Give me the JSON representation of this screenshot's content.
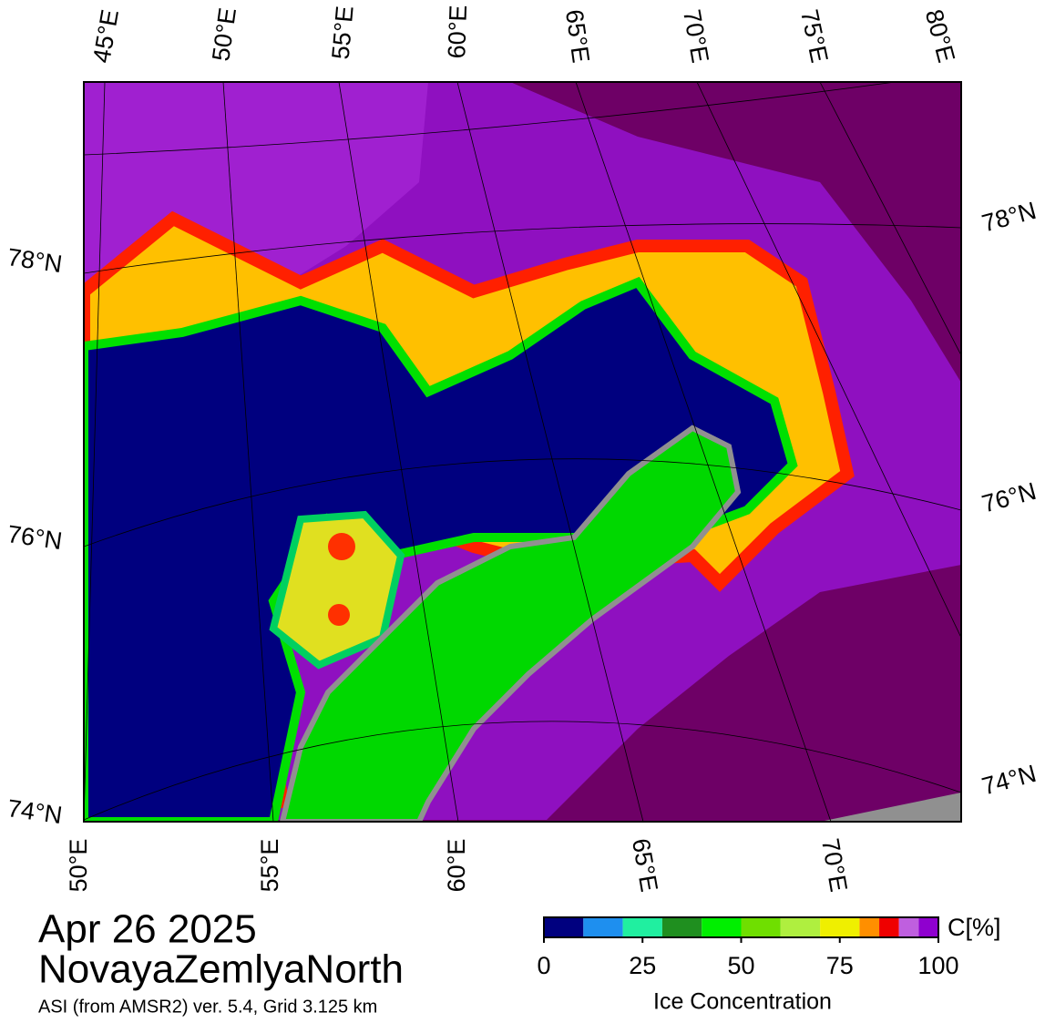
{
  "map": {
    "top_labels": [
      "45°E",
      "50°E",
      "55°E",
      "60°E",
      "65°E",
      "70°E",
      "75°E",
      "80°E"
    ],
    "bottom_labels": [
      "50°E",
      "55°E",
      "60°E",
      "65°E",
      "70°E"
    ],
    "left_labels": [
      "78°N",
      "76°N",
      "74°N"
    ],
    "right_labels": [
      "78°N",
      "76°N",
      "74°N"
    ]
  },
  "caption": {
    "date": "Apr 26 2025",
    "region": "NovayaZemlyaNorth",
    "source": "ASI (from AMSR2) ver. 5.4,  Grid 3.125 km"
  },
  "colorbar": {
    "unit": "C[%]",
    "label": "Ice Concentration",
    "range": [
      0,
      100
    ],
    "ticks": [
      0,
      25,
      50,
      75,
      100
    ],
    "bounds": [
      0,
      10,
      20,
      30,
      40,
      50,
      60,
      70,
      80,
      85,
      90,
      95,
      100
    ],
    "colors": [
      "#00007f",
      "#1e8fef",
      "#20efa0",
      "#1f8f1f",
      "#00ef00",
      "#6fdf00",
      "#afef3f",
      "#efef00",
      "#ff8f00",
      "#ef0000",
      "#bf5fdf",
      "#8f00cf"
    ]
  }
}
